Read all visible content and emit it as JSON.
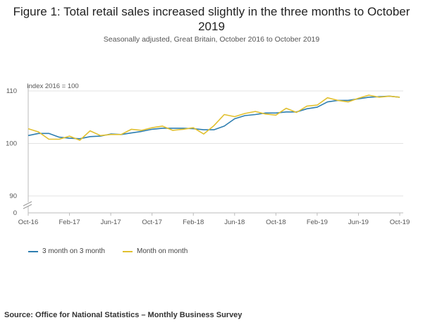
{
  "title": "Figure 1: Total retail sales increased slightly in the three months to October 2019",
  "subtitle": "Seasonally adjusted, Great Britain, October 2016 to October 2019",
  "source": "Source: Office for National Statistics – Monthly Business Survey",
  "chart_data": {
    "type": "line",
    "ylabel": "Index 2016 = 100",
    "y_ticks": [
      0,
      90,
      100,
      110
    ],
    "axis_break": true,
    "ylim_display": [
      90,
      110
    ],
    "grid": "horizontal",
    "legend_position": "bottom-left",
    "x_ticks": [
      "Oct-16",
      "Feb-17",
      "Jun-17",
      "Oct-17",
      "Feb-18",
      "Jun-18",
      "Oct-18",
      "Feb-19",
      "Jun-19",
      "Oct-19"
    ],
    "x": [
      "Oct-16",
      "Nov-16",
      "Dec-16",
      "Jan-17",
      "Feb-17",
      "Mar-17",
      "Apr-17",
      "May-17",
      "Jun-17",
      "Jul-17",
      "Aug-17",
      "Sep-17",
      "Oct-17",
      "Nov-17",
      "Dec-17",
      "Jan-18",
      "Feb-18",
      "Mar-18",
      "Apr-18",
      "May-18",
      "Jun-18",
      "Jul-18",
      "Aug-18",
      "Sep-18",
      "Oct-18",
      "Nov-18",
      "Dec-18",
      "Jan-19",
      "Feb-19",
      "Mar-19",
      "Apr-19",
      "May-19",
      "Jun-19",
      "Jul-19",
      "Aug-19",
      "Sep-19",
      "Oct-19"
    ],
    "series": [
      {
        "name": "3 month on 3 month",
        "color": "#2e7eb0",
        "values": [
          101.5,
          101.9,
          101.9,
          101.2,
          101.0,
          100.9,
          101.3,
          101.4,
          101.8,
          101.7,
          102.0,
          102.3,
          102.7,
          102.9,
          102.9,
          102.9,
          102.8,
          102.6,
          102.6,
          103.3,
          104.7,
          105.3,
          105.5,
          105.8,
          105.8,
          106.0,
          106.0,
          106.6,
          106.9,
          107.9,
          108.2,
          108.2,
          108.5,
          108.8,
          108.9,
          109.0,
          108.8
        ]
      },
      {
        "name": "Month on month",
        "color": "#e1c02f",
        "values": [
          102.8,
          102.2,
          100.8,
          100.8,
          101.4,
          100.6,
          102.4,
          101.5,
          101.7,
          101.7,
          102.7,
          102.5,
          103.0,
          103.3,
          102.5,
          102.7,
          103.0,
          101.8,
          103.4,
          105.5,
          105.1,
          105.7,
          106.1,
          105.6,
          105.4,
          106.7,
          105.9,
          107.1,
          107.3,
          108.7,
          108.2,
          107.9,
          108.6,
          109.2,
          108.8,
          109.0,
          108.8
        ]
      }
    ]
  }
}
